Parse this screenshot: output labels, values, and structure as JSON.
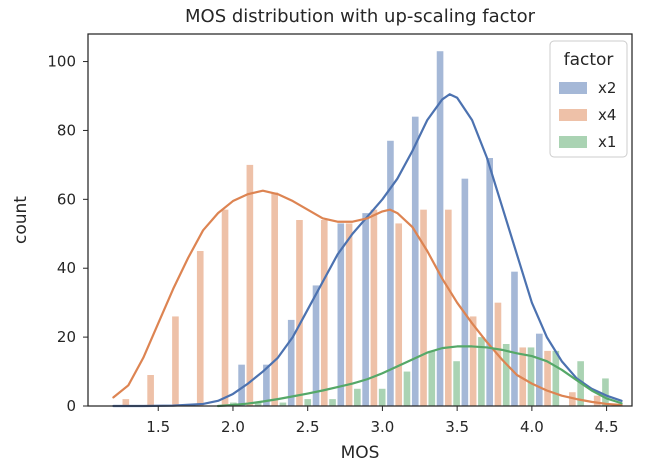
{
  "chart_data": {
    "type": "bar",
    "title": "MOS distribution with up-scaling factor",
    "xlabel": "MOS",
    "ylabel": "count",
    "xlim": [
      1.03,
      4.67
    ],
    "ylim": [
      0,
      108
    ],
    "xticks": [
      1.5,
      2.0,
      2.5,
      3.0,
      3.5,
      4.0,
      4.5
    ],
    "xtick_labels": [
      "1.5",
      "2.0",
      "2.5",
      "3.0",
      "3.5",
      "4.0",
      "4.5"
    ],
    "yticks": [
      0,
      20,
      40,
      60,
      80,
      100
    ],
    "ytick_labels": [
      "0",
      "20",
      "40",
      "60",
      "80",
      "100"
    ],
    "grid": false,
    "legend": {
      "title": "factor",
      "position": "top-right"
    },
    "bins": [
      1.2,
      1.366,
      1.532,
      1.698,
      1.864,
      2.03,
      2.196,
      2.362,
      2.528,
      2.694,
      2.86,
      3.026,
      3.192,
      3.358,
      3.524,
      3.69,
      3.856,
      4.022,
      4.188,
      4.354,
      4.52
    ],
    "series": [
      {
        "name": "x2",
        "color": "#4c72b0",
        "counts": [
          0,
          0,
          0,
          0,
          0,
          12,
          12,
          25,
          35,
          53,
          56,
          77,
          84,
          103,
          66,
          72,
          39,
          21,
          0,
          0
        ],
        "kde": [
          [
            1.2,
            0
          ],
          [
            1.4,
            0
          ],
          [
            1.6,
            0.1
          ],
          [
            1.8,
            0.6
          ],
          [
            1.9,
            1.5
          ],
          [
            2.0,
            3.5
          ],
          [
            2.1,
            6.5
          ],
          [
            2.2,
            10
          ],
          [
            2.3,
            14
          ],
          [
            2.4,
            20
          ],
          [
            2.5,
            28
          ],
          [
            2.6,
            36
          ],
          [
            2.7,
            44
          ],
          [
            2.8,
            50
          ],
          [
            2.9,
            55
          ],
          [
            3.0,
            60
          ],
          [
            3.1,
            66
          ],
          [
            3.2,
            74
          ],
          [
            3.3,
            83
          ],
          [
            3.4,
            89
          ],
          [
            3.45,
            90.5
          ],
          [
            3.5,
            89.5
          ],
          [
            3.6,
            83
          ],
          [
            3.7,
            72
          ],
          [
            3.8,
            58
          ],
          [
            3.9,
            44
          ],
          [
            4.0,
            30
          ],
          [
            4.1,
            20
          ],
          [
            4.2,
            13
          ],
          [
            4.3,
            8
          ],
          [
            4.4,
            5
          ],
          [
            4.5,
            3
          ],
          [
            4.6,
            1.5
          ]
        ]
      },
      {
        "name": "x4",
        "color": "#dd8452",
        "counts": [
          2,
          9,
          26,
          45,
          57,
          70,
          62,
          54,
          54,
          53,
          57,
          53,
          57,
          57,
          26,
          30,
          17,
          16,
          4,
          3
        ],
        "kde": [
          [
            1.2,
            2.5
          ],
          [
            1.3,
            6
          ],
          [
            1.4,
            14
          ],
          [
            1.5,
            24
          ],
          [
            1.6,
            34
          ],
          [
            1.7,
            43
          ],
          [
            1.8,
            51
          ],
          [
            1.9,
            56
          ],
          [
            2.0,
            59.5
          ],
          [
            2.1,
            61.5
          ],
          [
            2.2,
            62.5
          ],
          [
            2.3,
            61.5
          ],
          [
            2.4,
            59.5
          ],
          [
            2.5,
            57
          ],
          [
            2.6,
            54.5
          ],
          [
            2.7,
            53.5
          ],
          [
            2.8,
            53.5
          ],
          [
            2.9,
            54.5
          ],
          [
            3.0,
            56.5
          ],
          [
            3.05,
            57
          ],
          [
            3.1,
            56
          ],
          [
            3.2,
            52
          ],
          [
            3.3,
            45
          ],
          [
            3.4,
            37
          ],
          [
            3.5,
            30
          ],
          [
            3.6,
            24
          ],
          [
            3.7,
            18.5
          ],
          [
            3.8,
            13.5
          ],
          [
            3.9,
            9
          ],
          [
            4.0,
            6.5
          ],
          [
            4.1,
            4.5
          ],
          [
            4.2,
            3
          ],
          [
            4.3,
            2
          ],
          [
            4.4,
            1.2
          ],
          [
            4.5,
            0.6
          ],
          [
            4.6,
            0.3
          ]
        ]
      },
      {
        "name": "x1",
        "color": "#55a868",
        "counts": [
          0,
          0,
          0,
          0,
          1,
          1,
          1,
          2,
          2,
          5,
          5,
          10,
          16,
          13,
          20,
          18,
          17,
          16,
          13,
          8
        ],
        "kde": [
          [
            1.9,
            0
          ],
          [
            2.0,
            0.3
          ],
          [
            2.1,
            0.7
          ],
          [
            2.2,
            1.3
          ],
          [
            2.3,
            2
          ],
          [
            2.4,
            2.8
          ],
          [
            2.5,
            3.6
          ],
          [
            2.6,
            4.5
          ],
          [
            2.7,
            5.5
          ],
          [
            2.8,
            6.5
          ],
          [
            2.9,
            7.8
          ],
          [
            3.0,
            9.5
          ],
          [
            3.1,
            11.5
          ],
          [
            3.2,
            13.5
          ],
          [
            3.3,
            15.5
          ],
          [
            3.4,
            16.8
          ],
          [
            3.5,
            17.3
          ],
          [
            3.6,
            17.3
          ],
          [
            3.7,
            17
          ],
          [
            3.8,
            16.3
          ],
          [
            3.9,
            15.3
          ],
          [
            4.0,
            14.5
          ],
          [
            4.1,
            13
          ],
          [
            4.2,
            10.5
          ],
          [
            4.3,
            7.5
          ],
          [
            4.4,
            4.5
          ],
          [
            4.5,
            2.2
          ],
          [
            4.6,
            0.8
          ]
        ]
      }
    ]
  }
}
